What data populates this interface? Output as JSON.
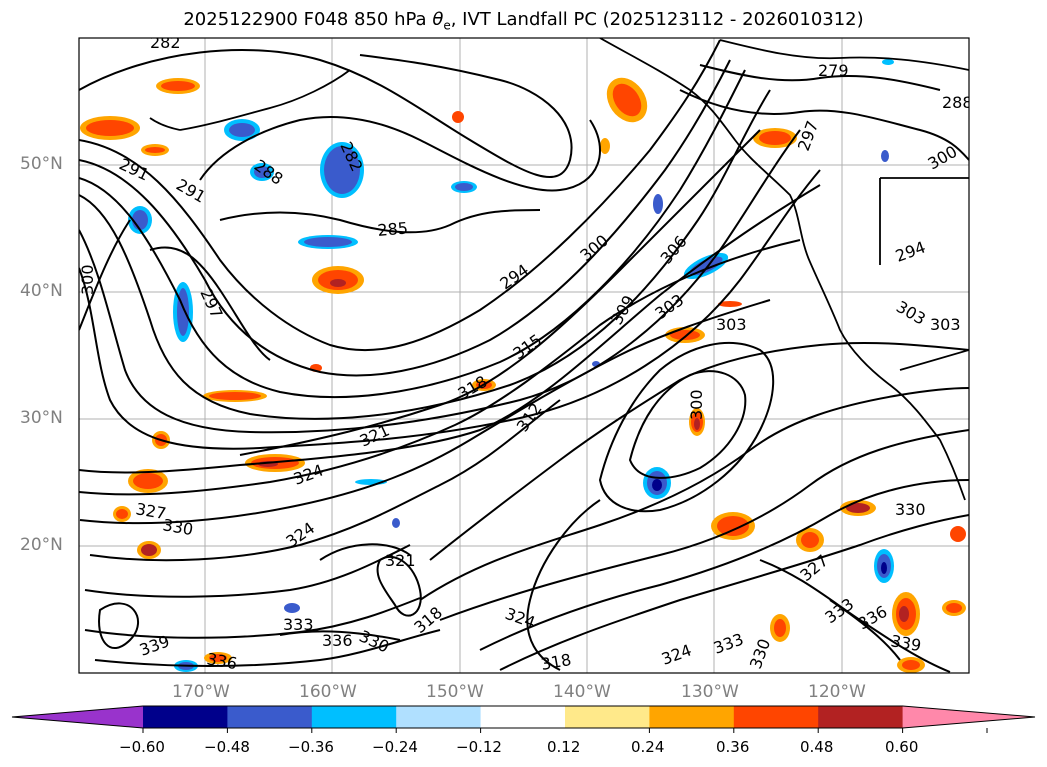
{
  "title": {
    "prefix": "2025122900 F048 850 hPa ",
    "symbol": "θ",
    "subscript": "e",
    "suffix": ", IVT Landfall PC (2025123112 - 2026010312)"
  },
  "axes": {
    "lat_labels": [
      "50°N",
      "40°N",
      "30°N",
      "20°N"
    ],
    "lon_labels": [
      "170°W",
      "160°W",
      "150°W",
      "140°W",
      "130°W",
      "120°W"
    ]
  },
  "contour_labels": [
    "282",
    "282",
    "288",
    "291",
    "291",
    "285",
    "300",
    "297",
    "294",
    "300",
    "306",
    "309",
    "303",
    "303",
    "315",
    "318",
    "312",
    "300",
    "321",
    "324",
    "327",
    "330",
    "324",
    "321",
    "318",
    "324",
    "333",
    "336",
    "330",
    "318",
    "324",
    "333",
    "330",
    "327",
    "333",
    "336",
    "339",
    "330",
    "339",
    "336",
    "279",
    "288",
    "297",
    "300",
    "294",
    "303"
  ],
  "colorbar": {
    "ticks": [
      "−0.60",
      "−0.48",
      "−0.36",
      "−0.24",
      "−0.12",
      "0.12",
      "0.24",
      "0.36",
      "0.48",
      "0.60"
    ],
    "colors": [
      "#9933cc",
      "#00008b",
      "#3a5bcc",
      "#00bfff",
      "#b0e0ff",
      "#ffffff",
      "#ffe98a",
      "#ffa500",
      "#ff4500",
      "#b22222",
      "#ff88aa"
    ]
  }
}
